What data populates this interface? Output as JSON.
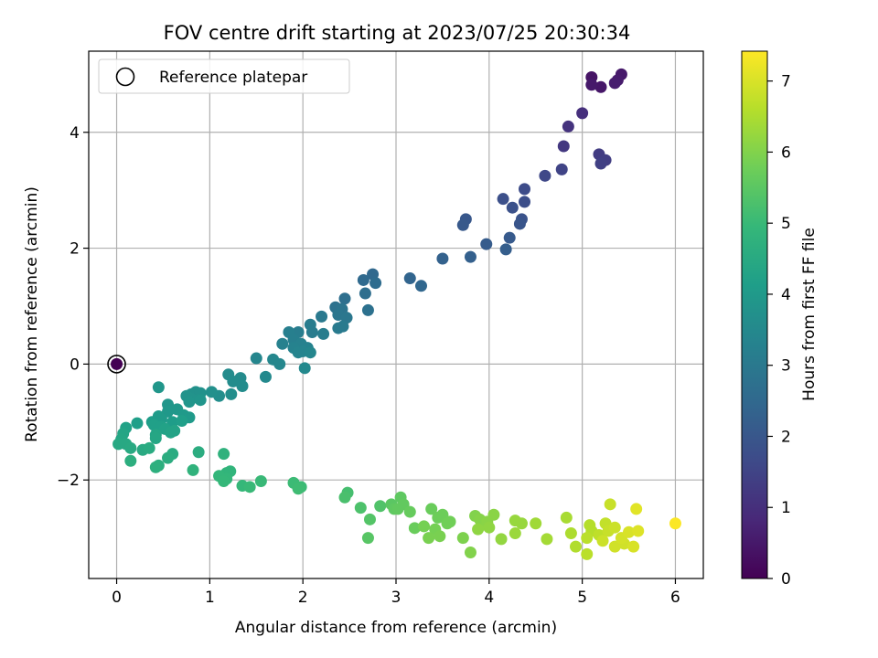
{
  "chart_data": {
    "type": "scatter",
    "title": "FOV centre drift starting at 2023/07/25 20:30:34",
    "xlabel": "Angular distance from reference (arcmin)",
    "ylabel": "Rotation from reference (arcmin)",
    "xlim": [
      -0.3,
      6.3
    ],
    "ylim": [
      -3.7,
      5.4
    ],
    "xticks": [
      0,
      1,
      2,
      3,
      4,
      5,
      6
    ],
    "xtick_labels": [
      "0",
      "1",
      "2",
      "3",
      "4",
      "5",
      "6"
    ],
    "yticks": [
      -2,
      0,
      2,
      4
    ],
    "ytick_labels": [
      "−2",
      "0",
      "2",
      "4"
    ],
    "grid": true,
    "legend": {
      "position": "top-left",
      "entries": [
        "Reference platepar"
      ]
    },
    "colorbar": {
      "label": "Hours from first FF file",
      "range": [
        0,
        7.42
      ],
      "colormap": "viridis",
      "ticks": [
        0,
        1,
        2,
        3,
        4,
        5,
        6,
        7
      ],
      "tick_labels": [
        "0",
        "1",
        "2",
        "3",
        "4",
        "5",
        "6",
        "7"
      ]
    },
    "reference_point": {
      "x": 0,
      "y": 0
    },
    "columns": [
      "x",
      "y",
      "hours"
    ],
    "points": [
      [
        0.0,
        0.0,
        0.0
      ],
      [
        5.1,
        4.95,
        0.4
      ],
      [
        5.2,
        4.78,
        0.45
      ],
      [
        5.1,
        4.82,
        0.5
      ],
      [
        5.42,
        5.0,
        0.5
      ],
      [
        5.38,
        4.9,
        0.55
      ],
      [
        5.35,
        4.85,
        0.6
      ],
      [
        5.0,
        4.33,
        1.0
      ],
      [
        4.85,
        4.1,
        1.1
      ],
      [
        4.8,
        3.76,
        1.2
      ],
      [
        5.18,
        3.62,
        1.3
      ],
      [
        5.25,
        3.52,
        1.35
      ],
      [
        5.2,
        3.46,
        1.4
      ],
      [
        4.78,
        3.36,
        1.5
      ],
      [
        4.6,
        3.25,
        1.6
      ],
      [
        4.38,
        3.02,
        1.7
      ],
      [
        4.38,
        2.8,
        1.75
      ],
      [
        4.15,
        2.85,
        1.8
      ],
      [
        4.25,
        2.7,
        1.85
      ],
      [
        4.35,
        2.5,
        1.9
      ],
      [
        4.33,
        2.42,
        1.95
      ],
      [
        3.75,
        2.5,
        2.0
      ],
      [
        3.72,
        2.4,
        2.05
      ],
      [
        4.22,
        2.18,
        2.1
      ],
      [
        3.97,
        2.07,
        2.15
      ],
      [
        4.18,
        1.98,
        2.2
      ],
      [
        3.8,
        1.85,
        2.25
      ],
      [
        3.5,
        1.82,
        2.3
      ],
      [
        3.15,
        1.48,
        2.4
      ],
      [
        3.27,
        1.35,
        2.45
      ],
      [
        2.75,
        1.55,
        2.5
      ],
      [
        2.65,
        1.45,
        2.55
      ],
      [
        2.78,
        1.4,
        2.6
      ],
      [
        2.67,
        1.22,
        2.65
      ],
      [
        2.45,
        1.13,
        2.7
      ],
      [
        2.7,
        0.93,
        2.75
      ],
      [
        2.35,
        0.98,
        2.8
      ],
      [
        2.42,
        0.95,
        2.85
      ],
      [
        2.38,
        0.85,
        2.9
      ],
      [
        2.47,
        0.8,
        2.95
      ],
      [
        2.2,
        0.82,
        3.0
      ],
      [
        2.38,
        0.62,
        3.05
      ],
      [
        2.43,
        0.65,
        3.05
      ],
      [
        2.08,
        0.68,
        3.1
      ],
      [
        2.1,
        0.55,
        3.1
      ],
      [
        2.22,
        0.52,
        3.15
      ],
      [
        1.95,
        0.55,
        3.15
      ],
      [
        1.85,
        0.55,
        3.2
      ],
      [
        1.9,
        0.42,
        3.2
      ],
      [
        1.78,
        0.35,
        3.25
      ],
      [
        1.98,
        0.35,
        3.25
      ],
      [
        1.9,
        0.28,
        3.3
      ],
      [
        2.05,
        0.28,
        3.3
      ],
      [
        2.0,
        0.22,
        3.35
      ],
      [
        1.95,
        0.2,
        3.35
      ],
      [
        2.08,
        0.2,
        3.4
      ],
      [
        1.5,
        0.1,
        3.4
      ],
      [
        1.68,
        0.08,
        3.45
      ],
      [
        1.75,
        0.0,
        3.45
      ],
      [
        2.02,
        -0.07,
        3.5
      ],
      [
        1.6,
        -0.22,
        3.5
      ],
      [
        1.2,
        -0.18,
        3.55
      ],
      [
        1.33,
        -0.24,
        3.55
      ],
      [
        1.25,
        -0.3,
        3.6
      ],
      [
        1.35,
        -0.38,
        3.6
      ],
      [
        1.1,
        -0.55,
        3.65
      ],
      [
        1.23,
        -0.52,
        3.65
      ],
      [
        1.02,
        -0.48,
        3.7
      ],
      [
        0.8,
        -0.52,
        3.7
      ],
      [
        0.85,
        -0.48,
        3.75
      ],
      [
        0.9,
        -0.5,
        3.75
      ],
      [
        0.75,
        -0.55,
        3.8
      ],
      [
        0.8,
        -0.6,
        3.8
      ],
      [
        0.78,
        -0.65,
        3.85
      ],
      [
        0.9,
        -0.62,
        3.85
      ],
      [
        0.45,
        -0.4,
        3.9
      ],
      [
        0.55,
        -0.7,
        3.9
      ],
      [
        0.65,
        -0.78,
        3.95
      ],
      [
        0.55,
        -0.82,
        3.95
      ],
      [
        0.72,
        -0.88,
        4.0
      ],
      [
        0.78,
        -0.92,
        4.0
      ],
      [
        0.45,
        -0.9,
        4.05
      ],
      [
        0.48,
        -0.95,
        4.05
      ],
      [
        0.38,
        -1.0,
        4.1
      ],
      [
        0.6,
        -1.0,
        4.1
      ],
      [
        0.7,
        -0.98,
        4.15
      ],
      [
        0.22,
        -1.02,
        4.15
      ],
      [
        0.4,
        -1.05,
        4.2
      ],
      [
        0.48,
        -1.08,
        4.2
      ],
      [
        0.1,
        -1.1,
        4.25
      ],
      [
        0.52,
        -1.12,
        4.25
      ],
      [
        0.62,
        -1.15,
        4.3
      ],
      [
        0.58,
        -1.18,
        4.3
      ],
      [
        0.07,
        -1.2,
        4.35
      ],
      [
        0.42,
        -1.22,
        4.35
      ],
      [
        0.05,
        -1.3,
        4.4
      ],
      [
        0.42,
        -1.28,
        4.4
      ],
      [
        0.02,
        -1.38,
        4.45
      ],
      [
        0.1,
        -1.38,
        4.45
      ],
      [
        0.15,
        -1.45,
        4.5
      ],
      [
        0.28,
        -1.48,
        4.5
      ],
      [
        0.35,
        -1.45,
        4.55
      ],
      [
        0.6,
        -1.55,
        4.55
      ],
      [
        0.88,
        -1.52,
        4.6
      ],
      [
        0.55,
        -1.62,
        4.6
      ],
      [
        0.15,
        -1.67,
        4.65
      ],
      [
        0.45,
        -1.75,
        4.65
      ],
      [
        0.42,
        -1.78,
        4.7
      ],
      [
        1.15,
        -1.55,
        4.75
      ],
      [
        0.82,
        -1.83,
        4.8
      ],
      [
        1.18,
        -1.88,
        4.85
      ],
      [
        1.22,
        -1.85,
        4.85
      ],
      [
        1.1,
        -1.93,
        4.9
      ],
      [
        1.18,
        -1.98,
        4.9
      ],
      [
        1.15,
        -2.02,
        4.95
      ],
      [
        1.35,
        -2.1,
        4.95
      ],
      [
        1.43,
        -2.12,
        5.0
      ],
      [
        1.55,
        -2.02,
        5.0
      ],
      [
        1.9,
        -2.05,
        5.05
      ],
      [
        1.98,
        -2.12,
        5.05
      ],
      [
        1.95,
        -2.15,
        5.1
      ],
      [
        2.48,
        -2.22,
        5.2
      ],
      [
        2.45,
        -2.3,
        5.25
      ],
      [
        2.62,
        -2.48,
        5.3
      ],
      [
        2.83,
        -2.45,
        5.35
      ],
      [
        2.72,
        -2.68,
        5.4
      ],
      [
        2.7,
        -3.0,
        5.45
      ],
      [
        2.95,
        -2.42,
        5.5
      ],
      [
        3.05,
        -2.3,
        5.55
      ],
      [
        2.98,
        -2.5,
        5.55
      ],
      [
        3.08,
        -2.42,
        5.6
      ],
      [
        3.02,
        -2.5,
        5.6
      ],
      [
        3.15,
        -2.55,
        5.65
      ],
      [
        3.2,
        -2.83,
        5.7
      ],
      [
        3.38,
        -2.5,
        5.7
      ],
      [
        3.45,
        -2.65,
        5.75
      ],
      [
        3.5,
        -2.6,
        5.75
      ],
      [
        3.58,
        -2.72,
        5.8
      ],
      [
        3.55,
        -2.75,
        5.8
      ],
      [
        3.3,
        -2.8,
        5.85
      ],
      [
        3.42,
        -2.85,
        5.85
      ],
      [
        3.35,
        -3.0,
        5.9
      ],
      [
        3.47,
        -2.97,
        5.9
      ],
      [
        3.72,
        -3.0,
        5.95
      ],
      [
        3.8,
        -3.25,
        6.0
      ],
      [
        3.85,
        -2.62,
        6.0
      ],
      [
        3.9,
        -2.68,
        6.05
      ],
      [
        3.92,
        -2.75,
        6.05
      ],
      [
        4.05,
        -2.6,
        6.1
      ],
      [
        3.98,
        -2.72,
        6.1
      ],
      [
        4.0,
        -2.82,
        6.15
      ],
      [
        3.88,
        -2.85,
        6.15
      ],
      [
        4.13,
        -3.02,
        6.2
      ],
      [
        4.28,
        -2.7,
        6.25
      ],
      [
        4.35,
        -2.75,
        6.25
      ],
      [
        4.28,
        -2.92,
        6.3
      ],
      [
        4.5,
        -2.75,
        6.35
      ],
      [
        4.62,
        -3.02,
        6.4
      ],
      [
        4.83,
        -2.65,
        6.45
      ],
      [
        4.88,
        -2.92,
        6.5
      ],
      [
        4.93,
        -3.15,
        6.55
      ],
      [
        5.08,
        -2.78,
        6.6
      ],
      [
        5.1,
        -2.88,
        6.6
      ],
      [
        5.05,
        -3.0,
        6.65
      ],
      [
        5.05,
        -3.28,
        6.65
      ],
      [
        5.18,
        -2.95,
        6.7
      ],
      [
        5.25,
        -2.75,
        6.75
      ],
      [
        5.3,
        -2.42,
        6.8
      ],
      [
        5.28,
        -2.88,
        6.8
      ],
      [
        5.35,
        -2.82,
        6.85
      ],
      [
        5.22,
        -3.05,
        6.85
      ],
      [
        5.35,
        -3.15,
        6.9
      ],
      [
        5.45,
        -3.1,
        6.9
      ],
      [
        5.42,
        -3.0,
        6.95
      ],
      [
        5.5,
        -2.9,
        7.0
      ],
      [
        5.55,
        -3.15,
        7.0
      ],
      [
        5.6,
        -2.88,
        7.05
      ],
      [
        5.58,
        -2.5,
        7.1
      ],
      [
        6.0,
        -2.75,
        7.4
      ]
    ]
  }
}
